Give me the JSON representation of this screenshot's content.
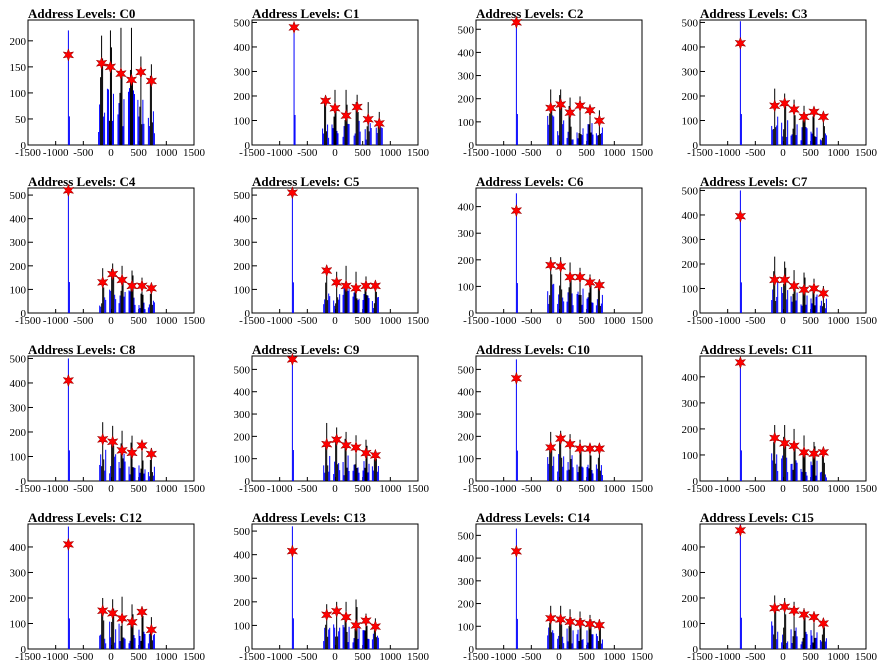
{
  "chart_data": [
    {
      "type": "bar",
      "title": "Address Levels: C0",
      "xlim": [
        -1500,
        1500
      ],
      "ylim": [
        0,
        240
      ],
      "yticks": [
        0,
        50,
        100,
        150,
        200
      ],
      "xticks": [
        -1500,
        -1000,
        -500,
        0,
        500,
        1000,
        1500
      ],
      "peaks": [
        {
          "x": -770,
          "height": 220,
          "star": 173
        },
        {
          "x": -170,
          "height": 210,
          "star": 157
        },
        {
          "x": -10,
          "height": 220,
          "star": 150
        },
        {
          "x": 180,
          "height": 225,
          "star": 137
        },
        {
          "x": 370,
          "height": 225,
          "star": 125
        },
        {
          "x": 540,
          "height": 170,
          "star": 140
        },
        {
          "x": 730,
          "height": 155,
          "star": 123
        }
      ]
    },
    {
      "type": "bar",
      "title": "Address Levels: C1",
      "xlim": [
        -1500,
        1500
      ],
      "ylim": [
        0,
        510
      ],
      "yticks": [
        0,
        100,
        200,
        300,
        400,
        500
      ],
      "xticks": [
        -1500,
        -1000,
        -500,
        0,
        500,
        1000,
        1500
      ],
      "peaks": [
        {
          "x": -740,
          "height": 490,
          "star": 480
        },
        {
          "x": -170,
          "height": 200,
          "star": 180
        },
        {
          "x": 0,
          "height": 225,
          "star": 150
        },
        {
          "x": 200,
          "height": 225,
          "star": 120
        },
        {
          "x": 400,
          "height": 205,
          "star": 155
        },
        {
          "x": 600,
          "height": 175,
          "star": 105
        },
        {
          "x": 800,
          "height": 135,
          "star": 88
        }
      ]
    },
    {
      "type": "bar",
      "title": "Address Levels: C2",
      "xlim": [
        -1500,
        1500
      ],
      "ylim": [
        0,
        540
      ],
      "yticks": [
        0,
        100,
        200,
        300,
        400,
        500
      ],
      "xticks": [
        -1500,
        -1000,
        -500,
        0,
        500,
        1000,
        1500
      ],
      "peaks": [
        {
          "x": -770,
          "height": 535,
          "star": 530
        },
        {
          "x": -150,
          "height": 240,
          "star": 160
        },
        {
          "x": 30,
          "height": 240,
          "star": 175
        },
        {
          "x": 200,
          "height": 205,
          "star": 140
        },
        {
          "x": 380,
          "height": 210,
          "star": 170
        },
        {
          "x": 560,
          "height": 175,
          "star": 150
        },
        {
          "x": 730,
          "height": 150,
          "star": 105
        }
      ]
    },
    {
      "type": "bar",
      "title": "Address Levels: C3",
      "xlim": [
        -1500,
        1500
      ],
      "ylim": [
        0,
        510
      ],
      "yticks": [
        0,
        100,
        200,
        300,
        400,
        500
      ],
      "xticks": [
        -1500,
        -1000,
        -500,
        0,
        500,
        1000,
        1500
      ],
      "peaks": [
        {
          "x": -770,
          "height": 505,
          "star": 415
        },
        {
          "x": -150,
          "height": 230,
          "star": 160
        },
        {
          "x": 30,
          "height": 210,
          "star": 170
        },
        {
          "x": 200,
          "height": 185,
          "star": 145
        },
        {
          "x": 380,
          "height": 160,
          "star": 115
        },
        {
          "x": 560,
          "height": 140,
          "star": 135
        },
        {
          "x": 730,
          "height": 135,
          "star": 115
        }
      ]
    },
    {
      "type": "bar",
      "title": "Address Levels: C4",
      "xlim": [
        -1500,
        1500
      ],
      "ylim": [
        0,
        530
      ],
      "yticks": [
        0,
        100,
        200,
        300,
        400,
        500
      ],
      "xticks": [
        -1500,
        -1000,
        -500,
        0,
        500,
        1000,
        1500
      ],
      "peaks": [
        {
          "x": -770,
          "height": 525,
          "star": 520
        },
        {
          "x": -150,
          "height": 190,
          "star": 130
        },
        {
          "x": 30,
          "height": 210,
          "star": 165
        },
        {
          "x": 200,
          "height": 200,
          "star": 140
        },
        {
          "x": 380,
          "height": 180,
          "star": 115
        },
        {
          "x": 560,
          "height": 150,
          "star": 115
        },
        {
          "x": 730,
          "height": 120,
          "star": 105
        }
      ]
    },
    {
      "type": "bar",
      "title": "Address Levels: C5",
      "xlim": [
        -1500,
        1500
      ],
      "ylim": [
        0,
        530
      ],
      "yticks": [
        0,
        100,
        200,
        300,
        400,
        500
      ],
      "xticks": [
        -1500,
        -1000,
        -500,
        0,
        500,
        1000,
        1500
      ],
      "peaks": [
        {
          "x": -770,
          "height": 520,
          "star": 510
        },
        {
          "x": -150,
          "height": 190,
          "star": 180
        },
        {
          "x": 30,
          "height": 175,
          "star": 130
        },
        {
          "x": 200,
          "height": 200,
          "star": 115
        },
        {
          "x": 380,
          "height": 175,
          "star": 105
        },
        {
          "x": 560,
          "height": 155,
          "star": 115
        },
        {
          "x": 730,
          "height": 130,
          "star": 115
        }
      ]
    },
    {
      "type": "bar",
      "title": "Address Levels: C6",
      "xlim": [
        -1500,
        1500
      ],
      "ylim": [
        0,
        470
      ],
      "yticks": [
        0,
        100,
        200,
        300,
        400
      ],
      "xticks": [
        -1500,
        -1000,
        -500,
        0,
        500,
        1000,
        1500
      ],
      "peaks": [
        {
          "x": -770,
          "height": 450,
          "star": 385
        },
        {
          "x": -150,
          "height": 210,
          "star": 180
        },
        {
          "x": 30,
          "height": 210,
          "star": 175
        },
        {
          "x": 200,
          "height": 190,
          "star": 135
        },
        {
          "x": 380,
          "height": 170,
          "star": 135
        },
        {
          "x": 560,
          "height": 145,
          "star": 115
        },
        {
          "x": 730,
          "height": 125,
          "star": 105
        }
      ]
    },
    {
      "type": "bar",
      "title": "Address Levels: C7",
      "xlim": [
        -1500,
        1500
      ],
      "ylim": [
        0,
        510
      ],
      "yticks": [
        0,
        100,
        200,
        300,
        400,
        500
      ],
      "xticks": [
        -1500,
        -1000,
        -500,
        0,
        500,
        1000,
        1500
      ],
      "peaks": [
        {
          "x": -770,
          "height": 500,
          "star": 395
        },
        {
          "x": -150,
          "height": 230,
          "star": 135
        },
        {
          "x": 30,
          "height": 210,
          "star": 135
        },
        {
          "x": 200,
          "height": 175,
          "star": 110
        },
        {
          "x": 380,
          "height": 165,
          "star": 95
        },
        {
          "x": 560,
          "height": 140,
          "star": 100
        },
        {
          "x": 730,
          "height": 110,
          "star": 80
        }
      ]
    },
    {
      "type": "bar",
      "title": "Address Levels: C8",
      "xlim": [
        -1500,
        1500
      ],
      "ylim": [
        0,
        510
      ],
      "yticks": [
        0,
        100,
        200,
        300,
        400,
        500
      ],
      "xticks": [
        -1500,
        -1000,
        -500,
        0,
        500,
        1000,
        1500
      ],
      "peaks": [
        {
          "x": -770,
          "height": 500,
          "star": 410
        },
        {
          "x": -150,
          "height": 240,
          "star": 170
        },
        {
          "x": 30,
          "height": 225,
          "star": 160
        },
        {
          "x": 200,
          "height": 205,
          "star": 125
        },
        {
          "x": 380,
          "height": 185,
          "star": 115
        },
        {
          "x": 560,
          "height": 165,
          "star": 145
        },
        {
          "x": 730,
          "height": 135,
          "star": 110
        }
      ]
    },
    {
      "type": "bar",
      "title": "Address Levels: C9",
      "xlim": [
        -1500,
        1500
      ],
      "ylim": [
        0,
        560
      ],
      "yticks": [
        0,
        100,
        200,
        300,
        400,
        500
      ],
      "xticks": [
        -1500,
        -1000,
        -500,
        0,
        500,
        1000,
        1500
      ],
      "peaks": [
        {
          "x": -770,
          "height": 555,
          "star": 545
        },
        {
          "x": -150,
          "height": 260,
          "star": 165
        },
        {
          "x": 30,
          "height": 240,
          "star": 185
        },
        {
          "x": 200,
          "height": 220,
          "star": 160
        },
        {
          "x": 380,
          "height": 205,
          "star": 150
        },
        {
          "x": 560,
          "height": 185,
          "star": 125
        },
        {
          "x": 730,
          "height": 135,
          "star": 115
        }
      ]
    },
    {
      "type": "bar",
      "title": "Address Levels: C10",
      "xlim": [
        -1500,
        1500
      ],
      "ylim": [
        0,
        560
      ],
      "yticks": [
        0,
        100,
        200,
        300,
        400,
        500
      ],
      "xticks": [
        -1500,
        -1000,
        -500,
        0,
        500,
        1000,
        1500
      ],
      "peaks": [
        {
          "x": -770,
          "height": 545,
          "star": 460
        },
        {
          "x": -150,
          "height": 220,
          "star": 150
        },
        {
          "x": 30,
          "height": 225,
          "star": 190
        },
        {
          "x": 200,
          "height": 210,
          "star": 165
        },
        {
          "x": 380,
          "height": 185,
          "star": 145
        },
        {
          "x": 560,
          "height": 170,
          "star": 145
        },
        {
          "x": 730,
          "height": 150,
          "star": 145
        }
      ]
    },
    {
      "type": "bar",
      "title": "Address Levels: C11",
      "xlim": [
        -1500,
        1500
      ],
      "ylim": [
        0,
        480
      ],
      "yticks": [
        0,
        100,
        200,
        300,
        400
      ],
      "xticks": [
        -1500,
        -1000,
        -500,
        0,
        500,
        1000,
        1500
      ],
      "peaks": [
        {
          "x": -770,
          "height": 470,
          "star": 455
        },
        {
          "x": -150,
          "height": 215,
          "star": 165
        },
        {
          "x": 30,
          "height": 215,
          "star": 145
        },
        {
          "x": 200,
          "height": 200,
          "star": 135
        },
        {
          "x": 380,
          "height": 175,
          "star": 110
        },
        {
          "x": 560,
          "height": 150,
          "star": 105
        },
        {
          "x": 730,
          "height": 125,
          "star": 110
        }
      ]
    },
    {
      "type": "bar",
      "title": "Address Levels: C12",
      "xlim": [
        -1500,
        1500
      ],
      "ylim": [
        0,
        490
      ],
      "yticks": [
        0,
        100,
        200,
        300,
        400
      ],
      "xticks": [
        -1500,
        -1000,
        -500,
        0,
        500,
        1000,
        1500
      ],
      "peaks": [
        {
          "x": -770,
          "height": 480,
          "star": 410
        },
        {
          "x": -150,
          "height": 200,
          "star": 150
        },
        {
          "x": 30,
          "height": 195,
          "star": 140
        },
        {
          "x": 200,
          "height": 205,
          "star": 120
        },
        {
          "x": 380,
          "height": 175,
          "star": 105
        },
        {
          "x": 560,
          "height": 160,
          "star": 145
        },
        {
          "x": 730,
          "height": 125,
          "star": 75
        }
      ]
    },
    {
      "type": "bar",
      "title": "Address Levels: C13",
      "xlim": [
        -1500,
        1500
      ],
      "ylim": [
        0,
        530
      ],
      "yticks": [
        0,
        100,
        200,
        300,
        400,
        500
      ],
      "xticks": [
        -1500,
        -1000,
        -500,
        0,
        500,
        1000,
        1500
      ],
      "peaks": [
        {
          "x": -770,
          "height": 520,
          "star": 415
        },
        {
          "x": -150,
          "height": 190,
          "star": 145
        },
        {
          "x": 30,
          "height": 200,
          "star": 160
        },
        {
          "x": 200,
          "height": 200,
          "star": 135
        },
        {
          "x": 380,
          "height": 210,
          "star": 100
        },
        {
          "x": 560,
          "height": 150,
          "star": 120
        },
        {
          "x": 730,
          "height": 130,
          "star": 95
        }
      ]
    },
    {
      "type": "bar",
      "title": "Address Levels: C14",
      "xlim": [
        -1500,
        1500
      ],
      "ylim": [
        0,
        550
      ],
      "yticks": [
        0,
        100,
        200,
        300,
        400,
        500
      ],
      "xticks": [
        -1500,
        -1000,
        -500,
        0,
        500,
        1000,
        1500
      ],
      "peaks": [
        {
          "x": -770,
          "height": 530,
          "star": 430
        },
        {
          "x": -150,
          "height": 190,
          "star": 135
        },
        {
          "x": 30,
          "height": 190,
          "star": 130
        },
        {
          "x": 200,
          "height": 175,
          "star": 120
        },
        {
          "x": 380,
          "height": 165,
          "star": 115
        },
        {
          "x": 560,
          "height": 150,
          "star": 110
        },
        {
          "x": 730,
          "height": 130,
          "star": 105
        }
      ]
    },
    {
      "type": "bar",
      "title": "Address Levels: C15",
      "xlim": [
        -1500,
        1500
      ],
      "ylim": [
        0,
        490
      ],
      "yticks": [
        0,
        100,
        200,
        300,
        400
      ],
      "xticks": [
        -1500,
        -1000,
        -500,
        0,
        500,
        1000,
        1500
      ],
      "peaks": [
        {
          "x": -770,
          "height": 490,
          "star": 465
        },
        {
          "x": -150,
          "height": 210,
          "star": 160
        },
        {
          "x": 30,
          "height": 200,
          "star": 165
        },
        {
          "x": 200,
          "height": 185,
          "star": 150
        },
        {
          "x": 380,
          "height": 160,
          "star": 135
        },
        {
          "x": 560,
          "height": 140,
          "star": 125
        },
        {
          "x": 730,
          "height": 120,
          "star": 100
        }
      ]
    }
  ],
  "colors": {
    "histogram_black": "#000000",
    "histogram_blue": "#0000ff",
    "star_fill": "#ff0000"
  }
}
